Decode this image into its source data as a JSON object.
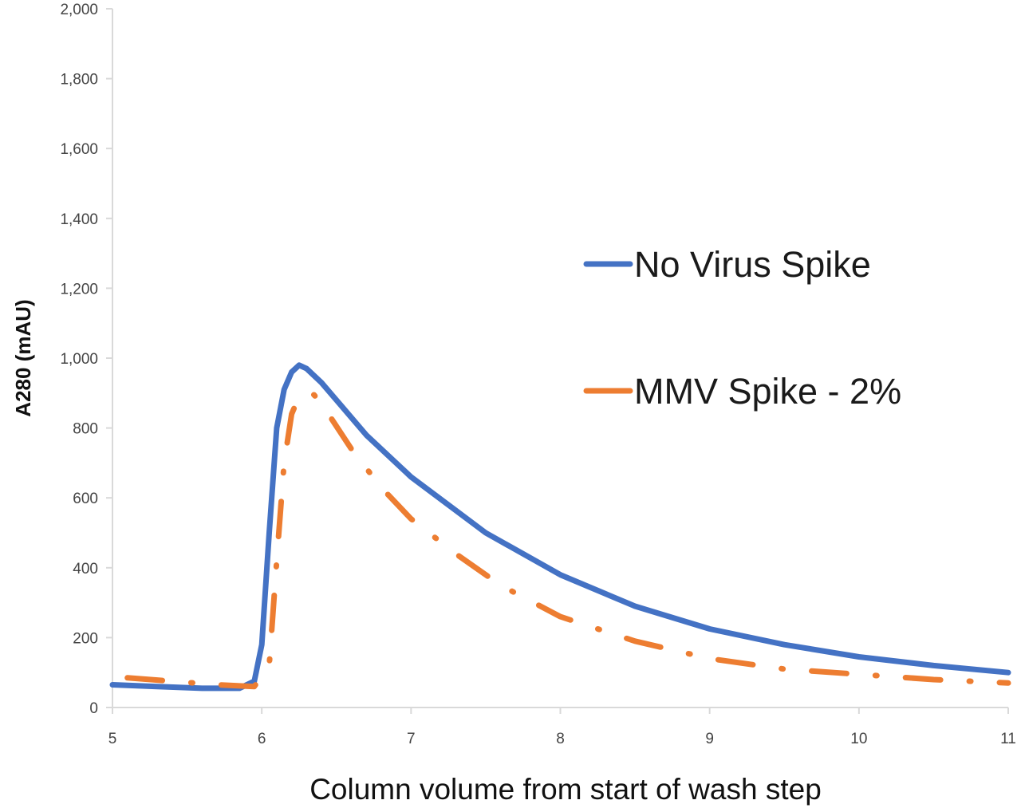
{
  "chart_data": {
    "type": "line",
    "title": "",
    "xlabel": "Column volume from start of wash step",
    "ylabel": "A280 (mAU)",
    "xlim": [
      5,
      11
    ],
    "ylim": [
      0,
      2000
    ],
    "x_ticks": [
      "5",
      "6",
      "7",
      "8",
      "9",
      "10",
      "11"
    ],
    "y_ticks": [
      "0",
      "200",
      "400",
      "600",
      "800",
      "1,000",
      "1,200",
      "1,400",
      "1,600",
      "1,800",
      "2,000"
    ],
    "grid": false,
    "legend_position": "right",
    "series": [
      {
        "name": "No Virus Spike",
        "color": "#4472C4",
        "style": "solid",
        "x": [
          5.0,
          5.3,
          5.6,
          5.85,
          5.95,
          6.0,
          6.05,
          6.1,
          6.15,
          6.2,
          6.25,
          6.3,
          6.4,
          6.5,
          6.7,
          7.0,
          7.5,
          8.0,
          8.5,
          9.0,
          9.5,
          10.0,
          10.5,
          11.0
        ],
        "values": [
          65,
          60,
          55,
          55,
          75,
          180,
          500,
          800,
          910,
          960,
          980,
          970,
          930,
          880,
          780,
          660,
          500,
          380,
          290,
          225,
          180,
          145,
          120,
          100
        ]
      },
      {
        "name": "MMV Spike - 2%",
        "color": "#ED7D31",
        "style": "dash-dot",
        "x": [
          5.1,
          5.4,
          5.7,
          5.95,
          6.05,
          6.1,
          6.15,
          6.2,
          6.25,
          6.3,
          6.35,
          6.4,
          6.6,
          6.8,
          7.0,
          7.3,
          7.6,
          8.0,
          8.5,
          9.0,
          9.5,
          10.0,
          10.5,
          11.0
        ],
        "values": [
          85,
          75,
          65,
          60,
          120,
          420,
          700,
          840,
          890,
          900,
          895,
          870,
          740,
          630,
          540,
          440,
          350,
          260,
          190,
          140,
          110,
          95,
          80,
          70
        ]
      }
    ]
  }
}
